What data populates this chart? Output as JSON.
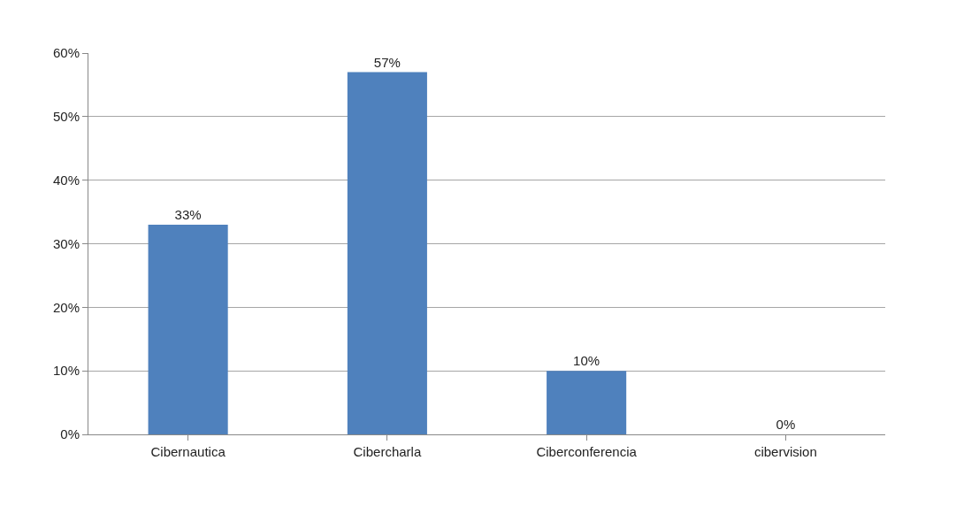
{
  "chart_data": {
    "type": "bar",
    "categories": [
      "Cibernautica",
      "Cibercharla",
      "Ciberconferencia",
      "cibervision"
    ],
    "values": [
      33,
      57,
      10,
      0
    ],
    "color": "#4f81bd",
    "value_labels": [
      "33%",
      "57%",
      "10%",
      "0%"
    ],
    "ylim": [
      0,
      60
    ],
    "yticks": [
      {
        "value": 0,
        "label": "0%"
      },
      {
        "value": 10,
        "label": "10%"
      },
      {
        "value": 20,
        "label": "20%"
      },
      {
        "value": 30,
        "label": "30%"
      },
      {
        "value": 40,
        "label": "40%"
      },
      {
        "value": 50,
        "label": "50%"
      },
      {
        "value": 60,
        "label": "60%"
      }
    ],
    "grid": "y"
  }
}
